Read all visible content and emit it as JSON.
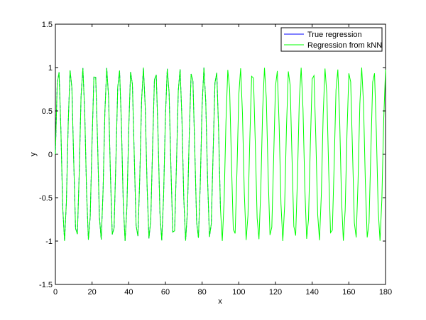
{
  "chart_data": {
    "type": "line",
    "title": "",
    "xlabel": "x",
    "ylabel": "y",
    "xlim": [
      0,
      180
    ],
    "ylim": [
      -1.5,
      1.5
    ],
    "x_ticks": [
      "0",
      "20",
      "40",
      "60",
      "80",
      "100",
      "120",
      "140",
      "160",
      "180"
    ],
    "y_ticks": [
      "-1.5",
      "-1",
      "-0.5",
      "0",
      "0.5",
      "1",
      "1.5"
    ],
    "grid": false,
    "legend_position": "top-right",
    "series": [
      {
        "name": "True regression",
        "color": "#0000ff",
        "style": "solid",
        "function": "y = sin(0.95 * x)",
        "x_range": [
          0,
          90
        ],
        "step": 1
      },
      {
        "name": "Regression from kNN",
        "color": "#00ff00",
        "style": "solid",
        "function": "y = sin(0.95 * x)",
        "x_range": [
          0,
          180
        ],
        "step": 1
      }
    ]
  }
}
